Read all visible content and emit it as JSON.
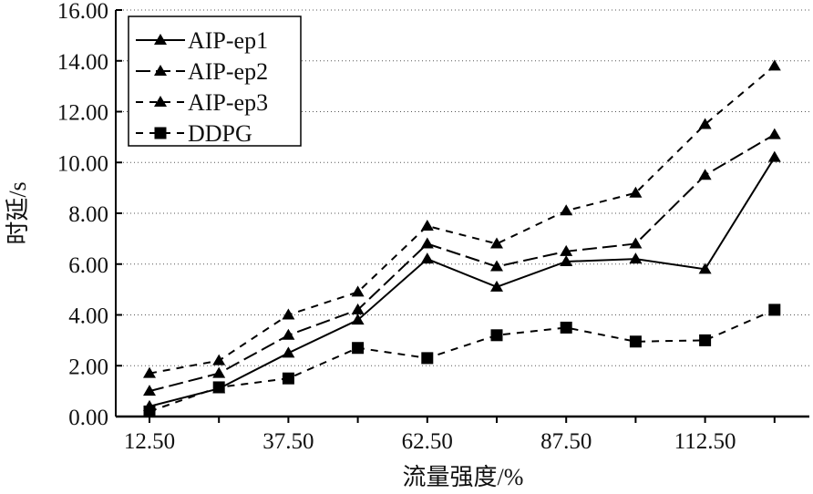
{
  "chart_data": {
    "type": "line",
    "title": "",
    "xlabel": "流量强度/%",
    "ylabel": "时延/s",
    "x": [
      12.5,
      25,
      37.5,
      50,
      62.5,
      75,
      87.5,
      100,
      112.5,
      125
    ],
    "xlim": [
      5,
      130
    ],
    "ylim": [
      0,
      16
    ],
    "xticks": [
      12.5,
      37.5,
      62.5,
      87.5,
      112.5
    ],
    "xtick_labels": [
      "12.50",
      "37.50",
      "62.50",
      "87.50",
      "112.50"
    ],
    "yticks": [
      0,
      2,
      4,
      6,
      8,
      10,
      12,
      14,
      16
    ],
    "ytick_labels": [
      "0.00",
      "2.00",
      "4.00",
      "6.00",
      "8.00",
      "10.00",
      "12.00",
      "14.00",
      "16.00"
    ],
    "grid": "horizontal dotted",
    "legend_position": "top-left",
    "series": [
      {
        "name": "AIP-ep1",
        "marker": "triangle",
        "dash": "solid",
        "values": [
          0.4,
          1.1,
          2.5,
          3.8,
          6.2,
          5.1,
          6.1,
          6.2,
          5.8,
          10.2
        ]
      },
      {
        "name": "AIP-ep2",
        "marker": "triangle",
        "dash": "long",
        "values": [
          1.0,
          1.7,
          3.2,
          4.2,
          6.8,
          5.9,
          6.5,
          6.8,
          9.5,
          11.1
        ]
      },
      {
        "name": "AIP-ep3",
        "marker": "triangle",
        "dash": "short",
        "values": [
          1.7,
          2.2,
          4.0,
          4.9,
          7.5,
          6.8,
          8.1,
          8.8,
          11.5,
          13.8
        ]
      },
      {
        "name": "DDPG",
        "marker": "square",
        "dash": "short",
        "values": [
          0.2,
          1.15,
          1.5,
          2.7,
          2.3,
          3.2,
          3.5,
          2.95,
          3.0,
          4.2
        ]
      }
    ]
  }
}
